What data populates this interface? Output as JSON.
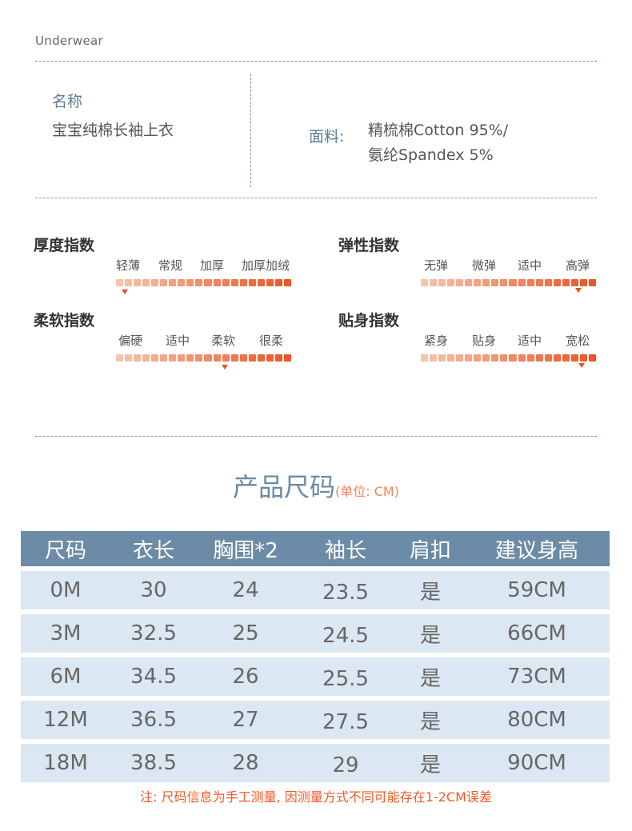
{
  "brand": "Underwear",
  "product": {
    "name_label": "名称",
    "name_value": "宝宝纯棉长袖上衣",
    "material_label": "面料:",
    "material_line1": "精梳棉Cotton 95%/",
    "material_line2": "氨纶Spandex 5%"
  },
  "indices": [
    {
      "title": "厚度指数",
      "options": [
        "轻薄",
        "常规",
        "加厚",
        "加厚加绒"
      ],
      "level": 0.05
    },
    {
      "title": "弹性指数",
      "options": [
        "无弹",
        "微弹",
        "适中",
        "高弹"
      ],
      "level": 0.9
    },
    {
      "title": "柔软指数",
      "options": [
        "偏硬",
        "适中",
        "柔软",
        "很柔"
      ],
      "level": 0.62
    },
    {
      "title": "贴身指数",
      "options": [
        "紧身",
        "贴身",
        "适中",
        "宽松"
      ],
      "level": 0.92
    }
  ],
  "size_section": {
    "title": "产品尺码",
    "unit": "(单位: CM)",
    "headers": [
      "尺码",
      "衣长",
      "胸围*2",
      "袖长",
      "肩扣",
      "建议身高"
    ],
    "rows": [
      [
        "0M",
        "30",
        "24",
        "23.5",
        "是",
        "59CM"
      ],
      [
        "3M",
        "32.5",
        "25",
        "24.5",
        "是",
        "66CM"
      ],
      [
        "6M",
        "34.5",
        "26",
        "25.5",
        "是",
        "73CM"
      ],
      [
        "12M",
        "36.5",
        "27",
        "27.5",
        "是",
        "80CM"
      ],
      [
        "18M",
        "38.5",
        "28",
        "29",
        "是",
        "90CM"
      ]
    ]
  },
  "note": "注: 尺码信息为手工测量, 因测量方式不同可能存在1-2CM误差",
  "colors": {
    "accent_blue": "#6c8ba6",
    "accent_orange": "#e5541c",
    "row_bg": "#dbe7f2"
  }
}
